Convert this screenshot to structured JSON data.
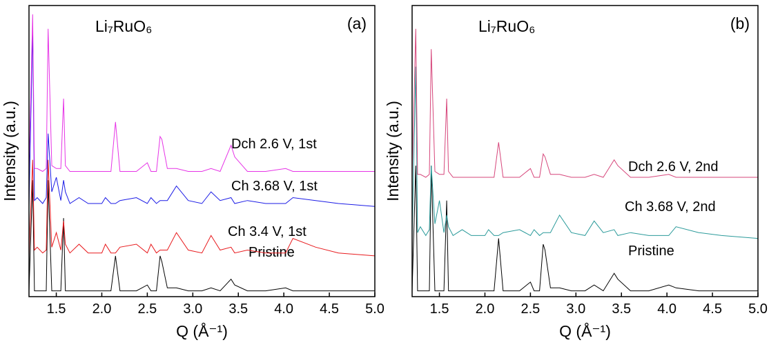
{
  "chart_data": [
    {
      "type": "line",
      "title": "Li₇RuO₆",
      "panel_label": "(a)",
      "xlabel": "Q (Å⁻¹)",
      "ylabel": "Intensity (a.u.)",
      "xlim": [
        1.2,
        5.0
      ],
      "ylim": [
        0,
        100
      ],
      "xticks": [
        1.5,
        {
          "value": 2,
          "label": "2.0"
        },
        2.5,
        {
          "value": 3,
          "label": "3.0"
        },
        3.5,
        {
          "value": 4,
          "label": "4.0"
        },
        4.5,
        {
          "value": 5,
          "label": "5.0"
        }
      ],
      "x": [
        1.2,
        1.24,
        1.26,
        1.29,
        1.35,
        1.39,
        1.41,
        1.45,
        1.5,
        1.55,
        1.58,
        1.6,
        1.65,
        1.75,
        1.85,
        2.0,
        2.04,
        2.1,
        2.15,
        2.2,
        2.38,
        2.5,
        2.54,
        2.6,
        2.64,
        2.66,
        2.72,
        2.82,
        2.95,
        3.1,
        3.2,
        3.3,
        3.42,
        3.46,
        3.6,
        3.8,
        4.02,
        4.1,
        4.35,
        4.6,
        5.0
      ],
      "series": [
        {
          "name": "Pristine",
          "color": "#000000",
          "values": [
            2,
            40,
            2,
            2,
            2,
            2,
            40,
            2,
            2,
            2,
            27,
            2,
            2,
            2,
            2,
            2,
            2,
            2,
            14,
            2,
            2,
            4,
            2,
            2,
            14,
            12,
            3,
            3,
            2,
            2,
            3,
            2,
            6,
            4,
            2,
            2,
            3,
            2,
            2,
            2,
            2
          ]
        },
        {
          "name": "Ch 3.4 V, 1st",
          "color": "#e8191c",
          "values": [
            14,
            47,
            16,
            17,
            15,
            16,
            47,
            17,
            22,
            16,
            26,
            18,
            15,
            18,
            15,
            15,
            18,
            15,
            15,
            17,
            18,
            15,
            18,
            15,
            16,
            16,
            16,
            22,
            16,
            15,
            21,
            16,
            17,
            15,
            16,
            15,
            15,
            20,
            17,
            15,
            14
          ]
        },
        {
          "name": "Ch 3.68 V, 1st",
          "color": "#1a1ae6",
          "values": [
            31,
            92,
            33,
            34,
            32,
            34,
            56,
            36,
            41,
            33,
            40,
            36,
            32,
            34,
            32,
            32,
            34,
            32,
            32,
            33,
            34,
            32,
            34,
            32,
            33,
            33,
            33,
            38,
            33,
            32,
            36,
            33,
            34,
            32,
            33,
            32,
            32,
            34,
            33,
            32,
            31
          ]
        },
        {
          "name": "Dch 2.6 V, 1st",
          "color": "#e632e6",
          "values": [
            43,
            97,
            44,
            44,
            43,
            44,
            92,
            45,
            44,
            44,
            68,
            45,
            43,
            43,
            43,
            43,
            43,
            43,
            60,
            43,
            43,
            46,
            43,
            43,
            55,
            54,
            44,
            44,
            43,
            43,
            44,
            43,
            52,
            48,
            43,
            43,
            44,
            43,
            43,
            43,
            43
          ]
        }
      ]
    },
    {
      "type": "line",
      "title": "Li₇RuO₆",
      "panel_label": "(b)",
      "xlabel": "Q (Å⁻¹)",
      "ylabel": "Intensity (a.u.)",
      "xlim": [
        1.2,
        5.0
      ],
      "ylim": [
        0,
        100
      ],
      "xticks": [
        1.5,
        {
          "value": 2,
          "label": "2.0"
        },
        2.5,
        {
          "value": 3,
          "label": "3.0"
        },
        3.5,
        {
          "value": 4,
          "label": "4.0"
        },
        4.5,
        {
          "value": 5,
          "label": "5.0"
        }
      ],
      "x": [
        1.2,
        1.24,
        1.26,
        1.29,
        1.35,
        1.39,
        1.41,
        1.45,
        1.5,
        1.55,
        1.58,
        1.6,
        1.65,
        1.75,
        1.85,
        2.0,
        2.04,
        2.1,
        2.15,
        2.2,
        2.38,
        2.5,
        2.54,
        2.6,
        2.64,
        2.66,
        2.72,
        2.82,
        2.95,
        3.1,
        3.2,
        3.3,
        3.42,
        3.46,
        3.6,
        3.8,
        4.02,
        4.1,
        4.35,
        4.6,
        5.0
      ],
      "series": [
        {
          "name": "Pristine",
          "color": "#000000",
          "values": [
            2,
            45,
            2,
            2,
            2,
            2,
            45,
            2,
            2,
            2,
            33,
            2,
            2,
            2,
            2,
            2,
            2,
            2,
            20,
            2,
            2,
            5,
            2,
            2,
            18,
            16,
            3,
            3,
            2,
            2,
            4,
            2,
            8,
            6,
            2,
            2,
            4,
            3,
            2,
            2,
            2
          ]
        },
        {
          "name": "Ch 3.68 V, 2nd",
          "color": "#2a9a9a",
          "values": [
            20,
            79,
            22,
            24,
            21,
            23,
            45,
            25,
            33,
            22,
            28,
            24,
            21,
            23,
            21,
            21,
            23,
            21,
            21,
            22,
            23,
            21,
            23,
            21,
            22,
            22,
            22,
            28,
            22,
            21,
            26,
            22,
            23,
            21,
            22,
            21,
            21,
            24,
            22,
            21,
            20
          ]
        },
        {
          "name": "Dch 2.6 V, 2nd",
          "color": "#d6457a",
          "values": [
            41,
            92,
            42,
            42,
            41,
            42,
            85,
            43,
            42,
            42,
            68,
            43,
            41,
            41,
            41,
            41,
            41,
            41,
            53,
            41,
            41,
            44,
            41,
            41,
            49,
            48,
            42,
            42,
            41,
            41,
            42,
            41,
            47,
            45,
            41,
            41,
            42,
            41,
            41,
            41,
            41
          ]
        }
      ]
    }
  ]
}
